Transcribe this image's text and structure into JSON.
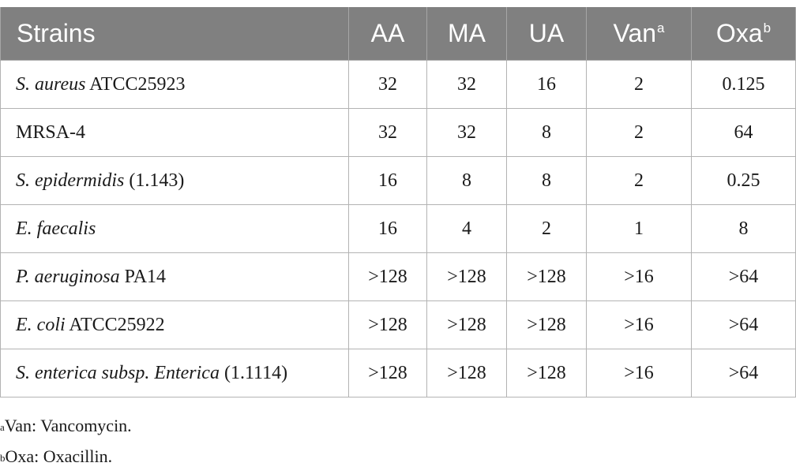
{
  "table": {
    "headers": [
      {
        "label": "Strains",
        "sup": ""
      },
      {
        "label": "AA",
        "sup": ""
      },
      {
        "label": "MA",
        "sup": ""
      },
      {
        "label": "UA",
        "sup": ""
      },
      {
        "label": "Van",
        "sup": "a"
      },
      {
        "label": "Oxa",
        "sup": "b"
      }
    ],
    "rows": [
      {
        "strain_italic": "S. aureus",
        "strain_rest": " ATCC25923",
        "values": [
          "32",
          "32",
          "16",
          "2",
          "0.125"
        ]
      },
      {
        "strain_italic": "",
        "strain_rest": "MRSA-4",
        "values": [
          "32",
          "32",
          "8",
          "2",
          "64"
        ]
      },
      {
        "strain_italic": "S. epidermidis",
        "strain_rest": " (1.143)",
        "values": [
          "16",
          "8",
          "8",
          "2",
          "0.25"
        ]
      },
      {
        "strain_italic": "E. faecalis",
        "strain_rest": "",
        "values": [
          "16",
          "4",
          "2",
          "1",
          "8"
        ]
      },
      {
        "strain_italic": "P. aeruginosa",
        "strain_rest": " PA14",
        "values": [
          ">128",
          ">128",
          ">128",
          ">16",
          ">64"
        ]
      },
      {
        "strain_italic": "E. coli",
        "strain_rest": " ATCC25922",
        "values": [
          ">128",
          ">128",
          ">128",
          ">16",
          ">64"
        ]
      },
      {
        "strain_italic": "S. enterica subsp. Enterica",
        "strain_rest": " (1.1114)",
        "values": [
          ">128",
          ">128",
          ">128",
          ">16",
          ">64"
        ]
      }
    ]
  },
  "footnotes": [
    {
      "mark": "a",
      "text": "Van: Vancomycin."
    },
    {
      "mark": "b",
      "text": "Oxa: Oxacillin."
    }
  ],
  "colors": {
    "header_bg": "#808080",
    "header_text": "#ffffff",
    "grid": "#b3b3b3"
  }
}
